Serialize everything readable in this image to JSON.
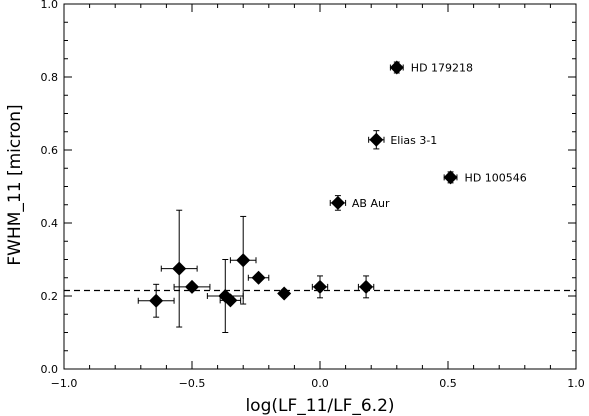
{
  "chart_data": {
    "type": "scatter",
    "title": "",
    "xlabel": "log(LF_11/LF_6.2)",
    "ylabel": "FWHM_11 [micron]",
    "xlim": [
      -1.0,
      1.0
    ],
    "ylim": [
      0.0,
      1.0
    ],
    "x_ticks": [
      -1.0,
      -0.5,
      0.0,
      0.5,
      1.0
    ],
    "x_tick_labels": [
      "−1.0",
      "−0.5",
      "0.0",
      "0.5",
      "1.0"
    ],
    "y_ticks": [
      0.0,
      0.2,
      0.4,
      0.6,
      0.8,
      1.0
    ],
    "y_tick_labels": [
      "0.0",
      "0.2",
      "0.4",
      "0.6",
      "0.8",
      "1.0"
    ],
    "grid": false,
    "reference_line": {
      "y": 0.215,
      "style": "dashed"
    },
    "marker": "diamond",
    "points": [
      {
        "x": -0.64,
        "y": 0.187,
        "xerr": 0.07,
        "yerr": 0.045
      },
      {
        "x": -0.55,
        "y": 0.275,
        "xerr": 0.07,
        "yerr": 0.16
      },
      {
        "x": -0.5,
        "y": 0.225,
        "xerr": 0.07,
        "yerr": 0.0
      },
      {
        "x": -0.37,
        "y": 0.2,
        "xerr": 0.07,
        "yerr": 0.1
      },
      {
        "x": -0.35,
        "y": 0.188,
        "xerr": 0.04,
        "yerr": 0.0
      },
      {
        "x": -0.3,
        "y": 0.298,
        "xerr": 0.05,
        "yerr": 0.12
      },
      {
        "x": -0.24,
        "y": 0.25,
        "xerr": 0.04,
        "yerr": 0.0
      },
      {
        "x": -0.14,
        "y": 0.207,
        "xerr": 0.0,
        "yerr": 0.0
      },
      {
        "x": 0.0,
        "y": 0.225,
        "xerr": 0.03,
        "yerr": 0.03
      },
      {
        "x": 0.18,
        "y": 0.225,
        "xerr": 0.03,
        "yerr": 0.03
      },
      {
        "x": 0.07,
        "y": 0.455,
        "xerr": 0.03,
        "yerr": 0.02,
        "label": "AB Aur"
      },
      {
        "x": 0.22,
        "y": 0.628,
        "xerr": 0.03,
        "yerr": 0.025,
        "label": "Elias 3-1"
      },
      {
        "x": 0.3,
        "y": 0.826,
        "xerr": 0.025,
        "yerr": 0.015,
        "label": "HD 179218"
      },
      {
        "x": 0.51,
        "y": 0.525,
        "xerr": 0.025,
        "yerr": 0.015,
        "label": "HD 100546"
      }
    ]
  }
}
